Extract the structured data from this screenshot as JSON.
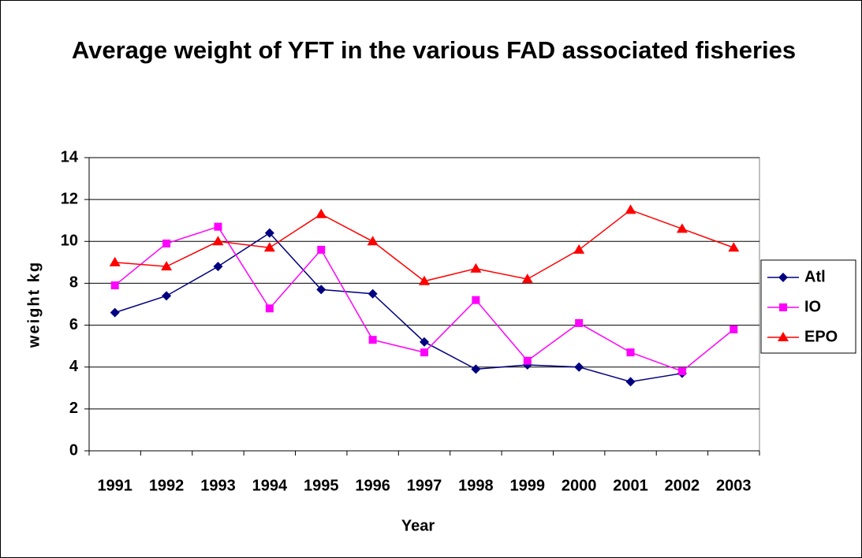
{
  "chart_data": {
    "type": "line",
    "title": "Average weight of YFT in the various FAD associated fisheries",
    "xlabel": "Year",
    "ylabel": "weight kg",
    "categories": [
      "1991",
      "1992",
      "1993",
      "1994",
      "1995",
      "1996",
      "1997",
      "1998",
      "1999",
      "2000",
      "2001",
      "2002",
      "2003"
    ],
    "series": [
      {
        "name": "Atl",
        "color": "#000080",
        "marker": "diamond",
        "values": [
          6.6,
          7.4,
          8.8,
          10.4,
          7.7,
          7.5,
          5.2,
          3.9,
          4.1,
          4.0,
          3.3,
          3.7,
          null
        ]
      },
      {
        "name": "IO",
        "color": "#ff00ff",
        "marker": "square",
        "values": [
          7.9,
          9.9,
          10.7,
          6.8,
          9.6,
          5.3,
          4.7,
          7.2,
          4.3,
          6.1,
          4.7,
          3.8,
          5.8
        ]
      },
      {
        "name": "EPO",
        "color": "#ff0000",
        "marker": "triangle",
        "values": [
          9.0,
          8.8,
          10.0,
          9.7,
          11.3,
          10.0,
          8.1,
          8.7,
          8.2,
          9.6,
          11.5,
          10.6,
          9.7
        ]
      }
    ],
    "ylim": [
      0,
      14
    ],
    "yticks": [
      0,
      2,
      4,
      6,
      8,
      10,
      12,
      14
    ],
    "grid": true,
    "legend": "right"
  }
}
